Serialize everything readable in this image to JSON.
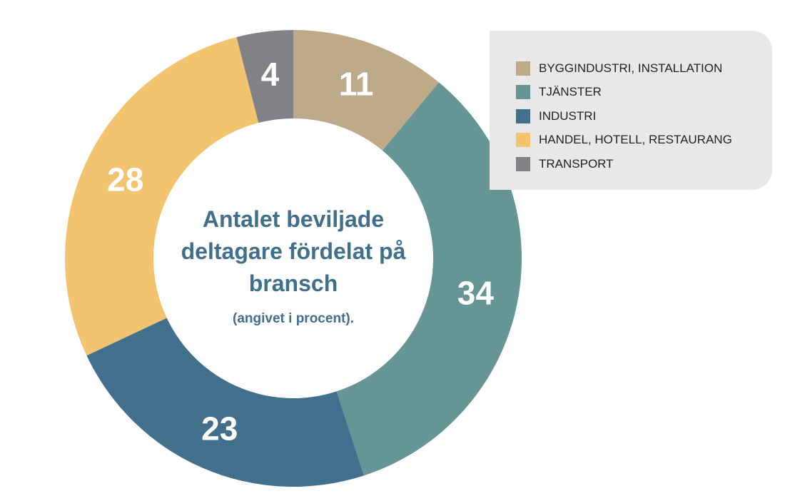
{
  "chart_data": {
    "type": "pie",
    "title": "Antalet beviljade deltagare fördelat på bransch",
    "subtitle": "(angivet i procent).",
    "slices": [
      {
        "label": "BYGGINDUSTRI, INSTALLATION",
        "value": 11,
        "color": "#bdaa89"
      },
      {
        "label": "TJÄNSTER",
        "value": 34,
        "color": "#659595"
      },
      {
        "label": "INDUSTRI",
        "value": 23,
        "color": "#416f8c"
      },
      {
        "label": "HANDEL, HOTELL, RESTAURANG",
        "value": 28,
        "color": "#f2c46f"
      },
      {
        "label": "TRANSPORT",
        "value": 4,
        "color": "#818285"
      }
    ],
    "legend_position": "top-right"
  }
}
